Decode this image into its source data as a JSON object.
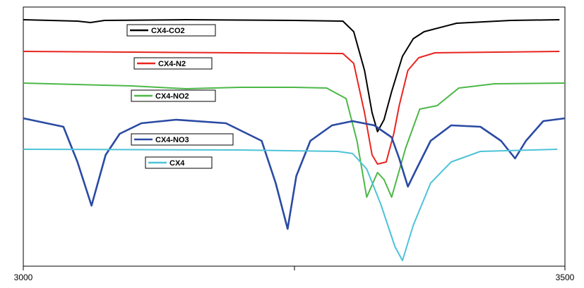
{
  "chart_data": {
    "type": "line",
    "xlim": [
      3000,
      3500
    ],
    "xticks": [
      3000,
      3500
    ],
    "ylim": [
      0,
      368
    ],
    "series": [
      {
        "name": "CX4-CO2",
        "color": "#000000",
        "x": [
          3000,
          3050,
          3062,
          3075,
          3150,
          3250,
          3295,
          3305,
          3315,
          3322,
          3327,
          3333,
          3340,
          3350,
          3360,
          3370,
          3400,
          3450,
          3495
        ],
        "values": [
          350,
          348,
          346,
          349,
          350,
          349,
          348,
          333,
          278,
          218,
          191,
          208,
          248,
          298,
          323,
          333,
          345,
          349,
          350
        ]
      },
      {
        "name": "CX4-N2",
        "color": "#e8251f",
        "x": [
          3000,
          3100,
          3200,
          3295,
          3305,
          3315,
          3322,
          3327,
          3335,
          3342,
          3347,
          3355,
          3365,
          3380,
          3495
        ],
        "values": [
          305,
          304,
          303,
          302,
          288,
          218,
          158,
          145,
          148,
          188,
          228,
          278,
          296,
          303,
          305
        ]
      },
      {
        "name": "CX4-NO2",
        "color": "#4cb848",
        "x": [
          3000,
          3100,
          3150,
          3200,
          3250,
          3280,
          3298,
          3308,
          3317,
          3327,
          3333,
          3340,
          3353,
          3366,
          3382,
          3402,
          3435,
          3500
        ],
        "values": [
          260,
          256,
          252,
          254,
          254,
          253,
          238,
          178,
          98,
          133,
          123,
          98,
          168,
          223,
          228,
          253,
          259,
          260
        ]
      },
      {
        "name": "CX4-NO3",
        "color": "#2a4aa3",
        "x": [
          3000,
          3037,
          3050,
          3063,
          3076,
          3089,
          3109,
          3141,
          3187,
          3220,
          3233,
          3244,
          3252,
          3265,
          3285,
          3304,
          3324,
          3340,
          3347,
          3355,
          3363,
          3376,
          3395,
          3422,
          3441,
          3454,
          3464,
          3480,
          3500
        ],
        "values": [
          210,
          198,
          148,
          86,
          158,
          188,
          203,
          208,
          203,
          178,
          118,
          53,
          128,
          178,
          200,
          206,
          200,
          183,
          153,
          113,
          138,
          178,
          200,
          198,
          178,
          153,
          178,
          206,
          210
        ]
      },
      {
        "name": "CX4",
        "color": "#4ec3d8",
        "x": [
          3000,
          3200,
          3290,
          3304,
          3317,
          3330,
          3343,
          3350,
          3360,
          3376,
          3395,
          3422,
          3493
        ],
        "values": [
          166,
          165,
          163,
          160,
          138,
          88,
          28,
          8,
          58,
          118,
          148,
          163,
          166
        ]
      }
    ]
  }
}
